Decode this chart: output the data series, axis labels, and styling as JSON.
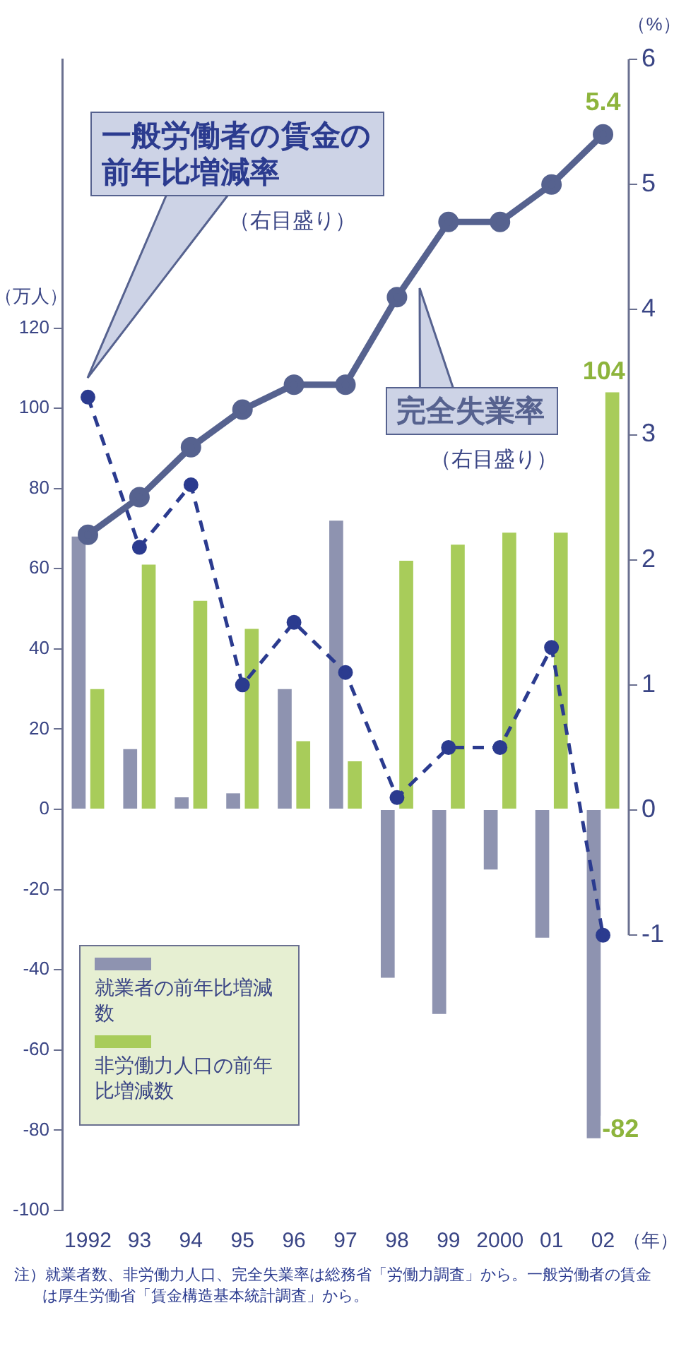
{
  "chart_data": {
    "type": "bar",
    "categories": [
      "1992",
      "93",
      "94",
      "95",
      "96",
      "97",
      "98",
      "99",
      "2000",
      "01",
      "02"
    ],
    "xlabel": "（年）",
    "ylabel": "（万人）",
    "y2label": "（%）",
    "series": [
      {
        "name": "就業者の前年比増減数",
        "color": "#8e93b0",
        "values": [
          68,
          15,
          3,
          4,
          30,
          72,
          -42,
          -51,
          -15,
          -32,
          -82
        ],
        "value_labels": [
          null,
          null,
          null,
          null,
          null,
          null,
          null,
          null,
          null,
          null,
          "-82"
        ]
      },
      {
        "name": "非労働力人口の前年比増減数",
        "color": "#a8cc5a",
        "values": [
          30,
          61,
          52,
          45,
          17,
          12,
          62,
          66,
          69,
          69,
          104
        ],
        "value_labels": [
          null,
          null,
          null,
          null,
          null,
          null,
          null,
          null,
          null,
          null,
          "104"
        ]
      },
      {
        "name": "完全失業率",
        "type": "line",
        "axis": "y2",
        "color": "#56628f",
        "line_style": "solid",
        "values": [
          2.2,
          2.5,
          2.9,
          3.2,
          3.4,
          3.4,
          4.1,
          4.7,
          4.7,
          5.0,
          5.4
        ],
        "value_labels": [
          null,
          null,
          null,
          null,
          null,
          null,
          null,
          null,
          null,
          null,
          "5.4"
        ]
      },
      {
        "name": "一般労働者の賃金の前年比増減率",
        "type": "line",
        "axis": "y2",
        "color": "#2b3b8f",
        "line_style": "dashed",
        "values": [
          3.3,
          2.1,
          2.6,
          1.0,
          1.5,
          1.1,
          0.1,
          0.5,
          0.5,
          1.3,
          -1.0
        ]
      }
    ],
    "ylim": [
      -100,
      187
    ],
    "yticks": [
      -100,
      -80,
      -60,
      -40,
      -20,
      0,
      20,
      40,
      60,
      80,
      100,
      120
    ],
    "y2lim": [
      -3.2,
      6
    ],
    "y2ticks": [
      -1,
      0,
      1,
      2,
      3,
      4,
      5,
      6
    ],
    "grid": false,
    "legend": "bottom left",
    "marker": "circle",
    "annotations": [
      "（右目盛り）",
      "（右目盛り）",
      "注）就業者数、非労働力人口、完全失業率は総務省「労働力調査」から。一般労働者の賃金は厚生労働省「賃金構造基本統計調査」から。"
    ]
  }
}
